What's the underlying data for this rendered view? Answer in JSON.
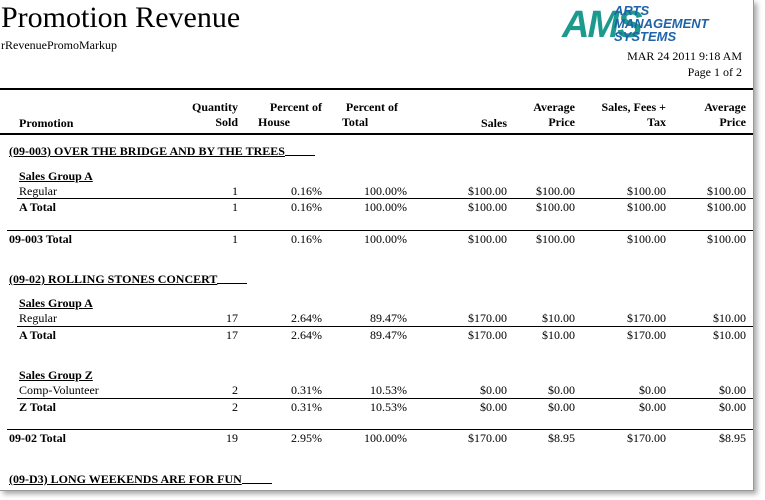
{
  "report": {
    "title": "Promotion Revenue",
    "subtitle": "rRevenuePromoMarkup",
    "datetime": "MAR 24 2011  9:18 AM",
    "page": "Page 1 of 2"
  },
  "logo": {
    "mark": "AMS",
    "line1": "ARTS",
    "line2": "MANAGEMENT",
    "line3": "SYSTEMS",
    "colors": {
      "mark": "#1c9a8e",
      "text": "#1f63a8"
    }
  },
  "columns": {
    "promotion": "Promotion",
    "qty_1": "Quantity",
    "qty_2": "Sold",
    "poh_1": "Percent of",
    "poh_2": "House",
    "pot_1": "Percent of",
    "pot_2": "Total",
    "sales": "Sales",
    "avg_1": "Average",
    "avg_2": "Price",
    "sft_1": "Sales, Fees +",
    "sft_2": "Tax",
    "avg2_1": "Average",
    "avg2_2": "Price"
  },
  "promotions": [
    {
      "title": "(09-003) OVER THE BRIDGE AND BY THE TREES",
      "groups": [
        {
          "title": "Sales Group A",
          "detail": {
            "label": "Regular",
            "qty": "1",
            "poh": "0.16%",
            "pot": "100.00%",
            "sales": "$100.00",
            "avg": "$100.00",
            "sft": "$100.00",
            "avg2": "$100.00"
          },
          "total": {
            "label": "A Total",
            "qty": "1",
            "poh": "0.16%",
            "pot": "100.00%",
            "sales": "$100.00",
            "avg": "$100.00",
            "sft": "$100.00",
            "avg2": "$100.00"
          }
        }
      ],
      "total": {
        "label": "09-003 Total",
        "qty": "1",
        "poh": "0.16%",
        "pot": "100.00%",
        "sales": "$100.00",
        "avg": "$100.00",
        "sft": "$100.00",
        "avg2": "$100.00"
      }
    },
    {
      "title": "(09-02) ROLLING STONES CONCERT",
      "groups": [
        {
          "title": "Sales Group A",
          "detail": {
            "label": "Regular",
            "qty": "17",
            "poh": "2.64%",
            "pot": "89.47%",
            "sales": "$170.00",
            "avg": "$10.00",
            "sft": "$170.00",
            "avg2": "$10.00"
          },
          "total": {
            "label": "A Total",
            "qty": "17",
            "poh": "2.64%",
            "pot": "89.47%",
            "sales": "$170.00",
            "avg": "$10.00",
            "sft": "$170.00",
            "avg2": "$10.00"
          }
        },
        {
          "title": "Sales Group Z",
          "detail": {
            "label": "Comp-Volunteer",
            "qty": "2",
            "poh": "0.31%",
            "pot": "10.53%",
            "sales": "$0.00",
            "avg": "$0.00",
            "sft": "$0.00",
            "avg2": "$0.00"
          },
          "total": {
            "label": "Z Total",
            "qty": "2",
            "poh": "0.31%",
            "pot": "10.53%",
            "sales": "$0.00",
            "avg": "$0.00",
            "sft": "$0.00",
            "avg2": "$0.00"
          }
        }
      ],
      "total": {
        "label": "09-02 Total",
        "qty": "19",
        "poh": "2.95%",
        "pot": "100.00%",
        "sales": "$170.00",
        "avg": "$8.95",
        "sft": "$170.00",
        "avg2": "$8.95"
      }
    },
    {
      "title": "(09-D3) LONG WEEKENDS ARE FOR FUN"
    }
  ]
}
